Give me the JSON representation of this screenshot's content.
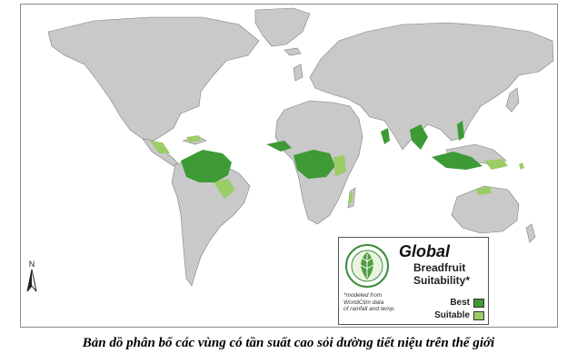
{
  "legend": {
    "title": "Global",
    "subtitle_line1": "Breadfruit",
    "subtitle_line2": "Suitability*",
    "note_line1": "*modeled from",
    "note_line2": "WorldClim data",
    "note_line3": "of rainfall and temp.",
    "items": [
      {
        "label": "Best",
        "color": "#3d9a35"
      },
      {
        "label": "Suitable",
        "color": "#9ccc66"
      }
    ],
    "logo_icon": "breadfruit-leaf-seal-icon"
  },
  "north_arrow": {
    "label": "N",
    "icon": "north-arrow-icon"
  },
  "caption": "Bản dồ phân bố các vùng có tần suất cao sỏi dường tiết niệu trên thế giới",
  "colors": {
    "land": "#c9c9c9",
    "ocean": "#ffffff",
    "best": "#3d9a35",
    "suitable": "#9ccc66",
    "border": "#7f7f7f"
  }
}
